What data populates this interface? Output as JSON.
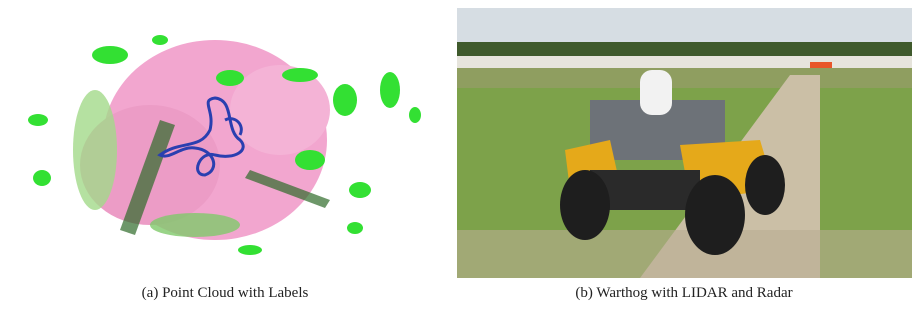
{
  "figure": {
    "panels": [
      {
        "caption": "(a) Point Cloud with Labels"
      },
      {
        "caption": "(b) Warthog with LIDAR and Radar"
      }
    ]
  }
}
